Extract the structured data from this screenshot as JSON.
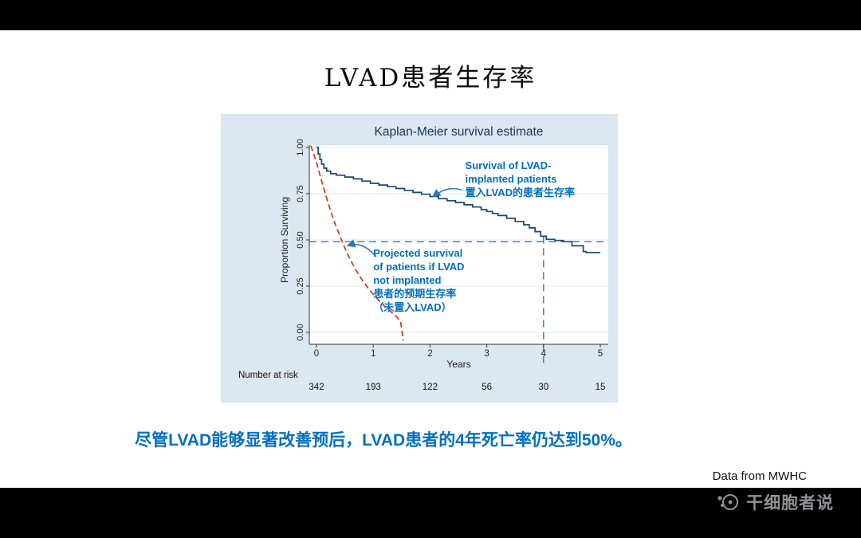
{
  "slide": {
    "title": "LVAD患者生存率",
    "conclusion": "尽管LVAD能够显著改善预后，LVAD患者的4年死亡率仍达到50%。",
    "footer_note": "Data from MWHC",
    "watermark": "干细胞者说"
  },
  "chart_data": {
    "type": "line",
    "title": "Kaplan-Meier survival estimate",
    "xlabel": "Years",
    "ylabel": "Proportion Surviving",
    "xlim": [
      0,
      5
    ],
    "ylim": [
      0,
      1
    ],
    "xticks": [
      0,
      1,
      2,
      3,
      4,
      5
    ],
    "yticks": [
      0,
      0.25,
      0.5,
      0.75,
      1
    ],
    "ytick_labels": [
      "0.00",
      "0.25",
      "0.50",
      "0.75",
      "1.00"
    ],
    "grid": true,
    "legend": "none (annotated with arrows)",
    "colors": {
      "panel_bg": "#dbe7f1",
      "plot_bg": "#ffffff",
      "grid": "#e2ebf3",
      "axis": "#333333",
      "title": "#17365d",
      "km_curve": "#1a476f",
      "projected_curve": "#e0301e",
      "reference": "#4472b8",
      "annotation_text": "#0070c0",
      "annotation_arrow": "#2e74b5"
    },
    "series": [
      {
        "name": "Survival of LVAD-implanted patients (Kaplan-Meier)",
        "style": "step",
        "color": "#1a476f",
        "points": [
          [
            0,
            1.0
          ],
          [
            0.03,
            0.965
          ],
          [
            0.06,
            0.935
          ],
          [
            0.09,
            0.91
          ],
          [
            0.13,
            0.888
          ],
          [
            0.18,
            0.872
          ],
          [
            0.25,
            0.858
          ],
          [
            0.35,
            0.85
          ],
          [
            0.5,
            0.84
          ],
          [
            0.65,
            0.83
          ],
          [
            0.8,
            0.818
          ],
          [
            0.95,
            0.806
          ],
          [
            1.1,
            0.797
          ],
          [
            1.25,
            0.788
          ],
          [
            1.4,
            0.778
          ],
          [
            1.55,
            0.768
          ],
          [
            1.7,
            0.757
          ],
          [
            1.85,
            0.747
          ],
          [
            2.0,
            0.735
          ],
          [
            2.15,
            0.723
          ],
          [
            2.3,
            0.712
          ],
          [
            2.45,
            0.702
          ],
          [
            2.6,
            0.69
          ],
          [
            2.75,
            0.678
          ],
          [
            2.9,
            0.664
          ],
          [
            3.0,
            0.654
          ],
          [
            3.1,
            0.643
          ],
          [
            3.2,
            0.632
          ],
          [
            3.35,
            0.617
          ],
          [
            3.5,
            0.6
          ],
          [
            3.65,
            0.582
          ],
          [
            3.75,
            0.565
          ],
          [
            3.85,
            0.545
          ],
          [
            3.95,
            0.52
          ],
          [
            4.05,
            0.503
          ],
          [
            4.2,
            0.497
          ],
          [
            4.35,
            0.49
          ],
          [
            4.5,
            0.468
          ],
          [
            4.7,
            0.437
          ],
          [
            4.75,
            0.432
          ],
          [
            5.0,
            0.432
          ]
        ]
      },
      {
        "name": "Projected survival of patients if LVAD not implanted",
        "style": "dashed",
        "color": "#e0301e",
        "points": [
          [
            -0.1,
            1.01
          ],
          [
            0,
            0.92
          ],
          [
            0.08,
            0.83
          ],
          [
            0.16,
            0.745
          ],
          [
            0.25,
            0.655
          ],
          [
            0.33,
            0.585
          ],
          [
            0.42,
            0.515
          ],
          [
            0.5,
            0.455
          ],
          [
            0.6,
            0.39
          ],
          [
            0.7,
            0.335
          ],
          [
            0.8,
            0.285
          ],
          [
            0.9,
            0.243
          ],
          [
            1.0,
            0.205
          ],
          [
            1.1,
            0.172
          ],
          [
            1.2,
            0.142
          ],
          [
            1.3,
            0.115
          ],
          [
            1.4,
            0.088
          ],
          [
            1.48,
            0.06
          ],
          [
            1.53,
            -0.045
          ]
        ]
      }
    ],
    "reference_lines": {
      "horizontal_y": 0.49,
      "vertical_x": 4,
      "color": "#4472b8"
    },
    "annotations": [
      {
        "id": "survival-lvad",
        "lines": [
          "Survival of LVAD-",
          "implanted patients",
          "置入LVAD的患者生存率"
        ],
        "text_x": 2.62,
        "text_y": 0.94,
        "arrow": {
          "from": [
            2.56,
            0.77
          ],
          "to": [
            2.06,
            0.735
          ]
        }
      },
      {
        "id": "projected-no-lvad",
        "lines": [
          "Projected survival",
          "of patients if LVAD",
          "not implanted",
          "患者的预期生存率",
          "（未置入LVAD）"
        ],
        "text_x": 1.0,
        "text_y": 0.465,
        "arrow": {
          "from": [
            1.05,
            0.41
          ],
          "to": [
            0.56,
            0.47
          ]
        }
      }
    ],
    "number_at_risk": {
      "label": "Number at risk",
      "x": [
        0,
        1,
        2,
        3,
        4,
        5
      ],
      "values": [
        342,
        193,
        122,
        56,
        30,
        15
      ]
    }
  }
}
